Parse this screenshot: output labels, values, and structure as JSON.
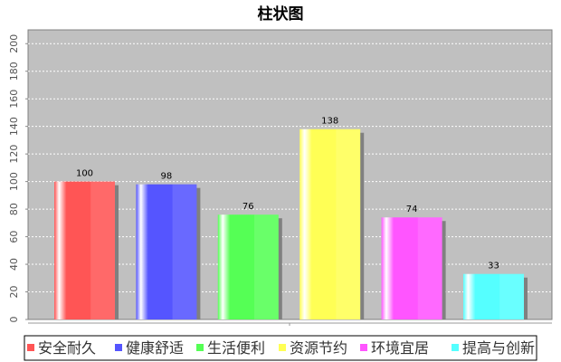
{
  "chart_data": {
    "type": "bar",
    "title": "柱状图",
    "xlabel": "",
    "ylabel": "",
    "ylim": [
      0,
      210
    ],
    "yticks": [
      0,
      20,
      40,
      60,
      80,
      100,
      120,
      140,
      160,
      180,
      200
    ],
    "grid": true,
    "legend_position": "bottom",
    "series": [
      {
        "name": "安全耐久",
        "value": 100,
        "color": "#ff5555"
      },
      {
        "name": "健康舒适",
        "value": 98,
        "color": "#5555ff"
      },
      {
        "name": "生活便利",
        "value": 76,
        "color": "#55ff55"
      },
      {
        "name": "资源节约",
        "value": 138,
        "color": "#ffff55"
      },
      {
        "name": "环境宜居",
        "value": 74,
        "color": "#ff55ff"
      },
      {
        "name": "提高与创新",
        "value": 33,
        "color": "#55ffff"
      }
    ],
    "plot_background": "#c0c0c0"
  }
}
